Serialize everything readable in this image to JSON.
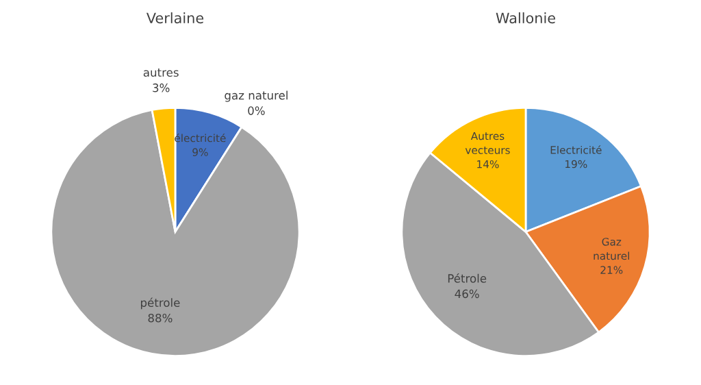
{
  "chart_data": [
    {
      "type": "pie",
      "title": "Verlaine",
      "categories": [
        "électricité",
        "gaz naturel",
        "pétrole",
        "autres"
      ],
      "values": [
        9,
        0,
        88,
        3
      ],
      "colors": [
        "#4472c4",
        "#ed7d31",
        "#a5a5a5",
        "#ffc000"
      ],
      "value_labels": [
        "9%",
        "0%",
        "88%",
        "3%"
      ]
    },
    {
      "type": "pie",
      "title": "Wallonie",
      "categories": [
        "Electricité",
        "Gaz naturel",
        "Pétrole",
        "Autres vecteurs"
      ],
      "values": [
        19,
        21,
        46,
        14
      ],
      "colors": [
        "#5b9bd5",
        "#ed7d31",
        "#a5a5a5",
        "#ffc000"
      ],
      "value_labels": [
        "19%",
        "21%",
        "46%",
        "14%"
      ]
    }
  ]
}
